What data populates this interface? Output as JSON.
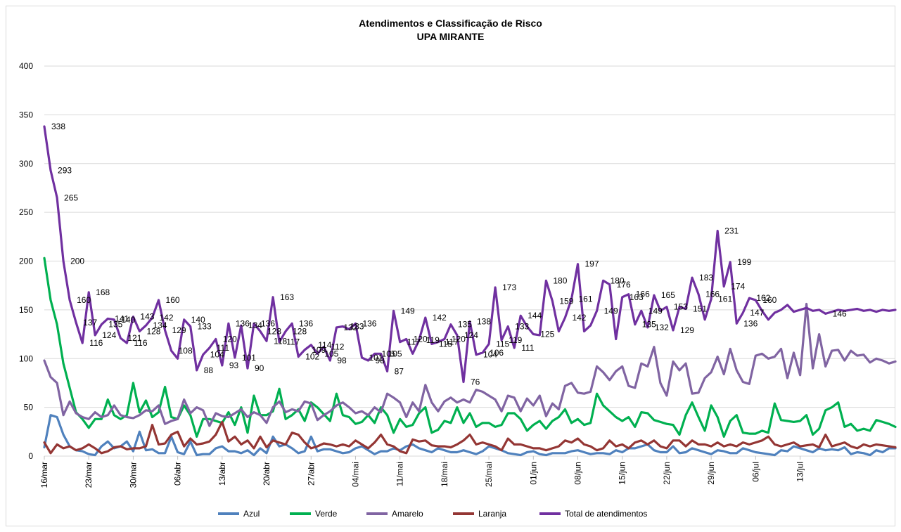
{
  "chart_data": {
    "type": "line",
    "title": "Atendimentos e Classificação de Risco",
    "subtitle": "UPA MIRANTE",
    "xlabel": "",
    "ylabel": "",
    "ylim": [
      0,
      400
    ],
    "yticks": [
      0,
      50,
      100,
      150,
      200,
      250,
      300,
      350,
      400
    ],
    "grid": true,
    "legend_position": "bottom",
    "x_start": "2020-03-16",
    "x_end": "2020-07-20",
    "x_tick_labels": [
      "16/mar",
      "23/mar",
      "30/mar",
      "06/abr",
      "13/abr",
      "20/abr",
      "27/abr",
      "04/mai",
      "11/mai",
      "18/mai",
      "25/mai",
      "01/jun",
      "08/jun",
      "15/jun",
      "22/jun",
      "29/jun",
      "06/jul",
      "13/jul"
    ],
    "series": [
      {
        "name": "Azul",
        "color": "#4f81bd",
        "values": [
          9,
          42,
          40,
          22,
          10,
          6,
          5,
          2,
          1,
          10,
          15,
          8,
          10,
          15,
          5,
          25,
          6,
          7,
          3,
          3,
          20,
          4,
          2,
          15,
          1,
          2,
          2,
          8,
          10,
          5,
          5,
          3,
          6,
          1,
          8,
          3,
          20,
          10,
          12,
          8,
          3,
          5,
          20,
          5,
          7,
          7,
          5,
          3,
          4,
          8,
          10,
          6,
          2,
          5,
          5,
          8,
          6,
          10,
          12,
          8,
          6,
          4,
          8,
          6,
          4,
          4,
          6,
          4,
          2,
          5,
          10,
          8,
          6,
          3,
          2,
          1,
          4,
          5,
          2,
          1,
          3,
          3,
          3,
          5,
          6,
          4,
          2,
          3,
          3,
          2,
          6,
          4,
          8,
          8,
          10,
          12,
          6,
          4,
          4,
          10,
          3,
          4,
          8,
          6,
          4,
          2,
          6,
          5,
          3,
          3,
          8,
          6,
          4,
          3,
          2,
          1,
          6,
          5,
          10,
          8,
          6,
          4,
          8,
          6,
          7,
          6,
          9,
          2,
          4,
          3,
          1,
          6,
          4,
          8,
          8
        ]
      },
      {
        "name": "Verde",
        "color": "#00b050",
        "values": [
          203,
          160,
          135,
          95,
          70,
          45,
          38,
          29,
          38,
          38,
          58,
          42,
          38,
          42,
          75,
          45,
          57,
          40,
          45,
          71,
          40,
          38,
          52,
          42,
          20,
          38,
          38,
          36,
          34,
          45,
          32,
          50,
          24,
          62,
          42,
          42,
          46,
          69,
          38,
          42,
          48,
          36,
          55,
          50,
          43,
          36,
          64,
          42,
          40,
          33,
          35,
          42,
          34,
          50,
          42,
          24,
          38,
          30,
          32,
          44,
          50,
          24,
          27,
          36,
          34,
          50,
          34,
          44,
          30,
          34,
          34,
          30,
          32,
          44,
          44,
          38,
          26,
          32,
          36,
          28,
          36,
          40,
          48,
          34,
          38,
          32,
          34,
          64,
          52,
          46,
          40,
          36,
          40,
          30,
          45,
          44,
          37,
          35,
          33,
          32,
          22,
          42,
          55,
          40,
          26,
          52,
          40,
          20,
          36,
          42,
          24,
          23,
          23,
          26,
          24,
          54,
          37,
          36,
          35,
          36,
          42,
          22,
          28,
          47,
          50,
          55,
          30,
          33,
          26,
          28,
          26,
          37,
          35,
          33,
          30
        ]
      },
      {
        "name": "Amarelo",
        "color": "#8064a2",
        "values": [
          98,
          81,
          75,
          42,
          56,
          44,
          40,
          38,
          45,
          40,
          42,
          52,
          42,
          40,
          39,
          42,
          47,
          46,
          52,
          33,
          36,
          38,
          58,
          44,
          50,
          47,
          31,
          44,
          41,
          40,
          44,
          48,
          40,
          45,
          42,
          34,
          50,
          56,
          45,
          48,
          46,
          56,
          54,
          37,
          42,
          46,
          52,
          55,
          50,
          44,
          46,
          42,
          50,
          45,
          64,
          60,
          55,
          40,
          55,
          46,
          73,
          55,
          46,
          56,
          60,
          55,
          58,
          55,
          68,
          66,
          62,
          58,
          46,
          62,
          60,
          46,
          59,
          52,
          62,
          41,
          54,
          48,
          72,
          75,
          65,
          64,
          66,
          92,
          86,
          78,
          87,
          92,
          72,
          70,
          95,
          92,
          112,
          75,
          62,
          97,
          88,
          95,
          64,
          65,
          80,
          86,
          102,
          84,
          110,
          88,
          76,
          74,
          103,
          105,
          100,
          102,
          110,
          80,
          106,
          83,
          156,
          90,
          125,
          92,
          108,
          109,
          98,
          108,
          103,
          104,
          96,
          100,
          98,
          95,
          97
        ]
      },
      {
        "name": "Laranja",
        "color": "#943634",
        "values": [
          14,
          3,
          12,
          8,
          10,
          6,
          8,
          12,
          8,
          3,
          5,
          9,
          10,
          7,
          8,
          8,
          10,
          32,
          12,
          13,
          22,
          25,
          10,
          18,
          12,
          13,
          15,
          22,
          35,
          15,
          20,
          12,
          16,
          8,
          20,
          9,
          16,
          14,
          12,
          24,
          22,
          14,
          8,
          10,
          13,
          12,
          10,
          12,
          10,
          16,
          12,
          8,
          14,
          22,
          12,
          10,
          5,
          3,
          17,
          15,
          16,
          11,
          10,
          10,
          9,
          12,
          16,
          22,
          12,
          14,
          12,
          10,
          6,
          18,
          12,
          12,
          10,
          8,
          8,
          6,
          8,
          10,
          16,
          14,
          18,
          12,
          10,
          6,
          8,
          16,
          10,
          12,
          8,
          14,
          16,
          12,
          16,
          10,
          8,
          16,
          16,
          10,
          16,
          12,
          12,
          10,
          14,
          10,
          12,
          10,
          14,
          12,
          14,
          16,
          20,
          12,
          10,
          12,
          14,
          10,
          11,
          12,
          9,
          22,
          10,
          12,
          14,
          10,
          8,
          12,
          10,
          12,
          11,
          10,
          9
        ]
      },
      {
        "name": "Total de atendimentos",
        "color": "#7030a0",
        "values": [
          338,
          293,
          265,
          200,
          160,
          137,
          116,
          168,
          124,
          135,
          141,
          140,
          121,
          116,
          143,
          128,
          134,
          142,
          160,
          129,
          108,
          100,
          140,
          133,
          88,
          104,
          111,
          120,
          93,
          136,
          101,
          134,
          90,
          136,
          128,
          118,
          163,
          117,
          128,
          136,
          102,
          109,
          114,
          105,
          112,
          98,
          132,
          133,
          130,
          136,
          101,
          98,
          105,
          105,
          87,
          149,
          117,
          120,
          105,
          119,
          142,
          115,
          117,
          120,
          135,
          124,
          76,
          138,
          104,
          106,
          115,
          173,
          119,
          133,
          111,
          144,
          133,
          125,
          124,
          180,
          159,
          128,
          142,
          161,
          197,
          128,
          134,
          149,
          180,
          176,
          120,
          163,
          166,
          135,
          149,
          132,
          165,
          149,
          153,
          129,
          153,
          151,
          183,
          166,
          140,
          161,
          231,
          174,
          199,
          136,
          147,
          162,
          160,
          149,
          140,
          147,
          150,
          155,
          148,
          150,
          152,
          149,
          150,
          146,
          148,
          150,
          149,
          150,
          151,
          149,
          150,
          148,
          150,
          149,
          150
        ]
      }
    ],
    "data_labels": [
      {
        "series": "Total de atendimentos",
        "text": "338"
      },
      {
        "series": "Total de atendimentos",
        "text": "293"
      },
      {
        "series": "Total de atendimentos",
        "text": "265"
      },
      {
        "series": "Total de atendimentos",
        "text": "200"
      },
      {
        "series": "Total de atendimentos",
        "text": "160"
      },
      {
        "series": "Total de atendimentos",
        "text": "168"
      },
      {
        "series": "Total de atendimentos",
        "text": "137"
      },
      {
        "series": "Total de atendimentos",
        "text": "116"
      },
      {
        "series": "Total de atendimentos",
        "text": "124"
      },
      {
        "series": "Total de atendimentos",
        "text": "135"
      },
      {
        "series": "Total de atendimentos",
        "text": "141"
      },
      {
        "series": "Total de atendimentos",
        "text": "121"
      },
      {
        "series": "Total de atendimentos",
        "text": "116"
      },
      {
        "series": "Total de atendimentos",
        "text": "143"
      },
      {
        "series": "Total de atendimentos",
        "text": "128"
      },
      {
        "series": "Total de atendimentos",
        "text": "136"
      },
      {
        "series": "Total de atendimentos",
        "text": "142"
      },
      {
        "series": "Total de atendimentos",
        "text": "132"
      },
      {
        "series": "Total de atendimentos",
        "text": "160"
      },
      {
        "series": "Total de atendimentos",
        "text": "129"
      },
      {
        "series": "Total de atendimentos",
        "text": "108"
      },
      {
        "series": "Total de atendimentos",
        "text": "109"
      },
      {
        "series": "Total de atendimentos",
        "text": "140"
      },
      {
        "series": "Total de atendimentos",
        "text": "111"
      },
      {
        "series": "Total de atendimentos",
        "text": "88"
      },
      {
        "series": "Total de atendimentos",
        "text": "104"
      },
      {
        "series": "Total de atendimentos",
        "text": "120"
      },
      {
        "series": "Total de atendimentos",
        "text": "133"
      },
      {
        "series": "Total de atendimentos",
        "text": "101"
      },
      {
        "series": "Total de atendimentos",
        "text": "93"
      },
      {
        "series": "Total de atendimentos",
        "text": "136"
      },
      {
        "series": "Total de atendimentos",
        "text": "134"
      },
      {
        "series": "Total de atendimentos",
        "text": "90"
      },
      {
        "series": "Total de atendimentos",
        "text": "163"
      },
      {
        "series": "Total de atendimentos",
        "text": "118"
      },
      {
        "series": "Total de atendimentos",
        "text": "117"
      },
      {
        "series": "Total de atendimentos",
        "text": "136"
      },
      {
        "series": "Total de atendimentos",
        "text": "128"
      },
      {
        "series": "Total de atendimentos",
        "text": "102"
      },
      {
        "series": "Total de atendimentos",
        "text": "109"
      },
      {
        "series": "Total de atendimentos",
        "text": "146"
      },
      {
        "series": "Total de atendimentos",
        "text": "132"
      },
      {
        "series": "Total de atendimentos",
        "text": "114"
      },
      {
        "series": "Total de atendimentos",
        "text": "102"
      },
      {
        "series": "Total de atendimentos",
        "text": "105"
      },
      {
        "series": "Total de atendimentos",
        "text": "112"
      },
      {
        "series": "Total de atendimentos",
        "text": "98"
      },
      {
        "series": "Total de atendimentos",
        "text": "133"
      },
      {
        "series": "Total de atendimentos",
        "text": "136"
      },
      {
        "series": "Total de atendimentos",
        "text": "101"
      },
      {
        "series": "Total de atendimentos",
        "text": "105"
      },
      {
        "series": "Total de atendimentos",
        "text": "98"
      },
      {
        "series": "Total de atendimentos",
        "text": "87"
      },
      {
        "series": "Total de atendimentos",
        "text": "149"
      },
      {
        "series": "Total de atendimentos",
        "text": "105"
      },
      {
        "series": "Total de atendimentos",
        "text": "119"
      },
      {
        "series": "Total de atendimentos",
        "text": "115"
      },
      {
        "series": "Total de atendimentos",
        "text": "142"
      },
      {
        "series": "Total de atendimentos",
        "text": "117"
      },
      {
        "series": "Total de atendimentos",
        "text": "135"
      },
      {
        "series": "Total de atendimentos",
        "text": "120"
      },
      {
        "series": "Total de atendimentos",
        "text": "117"
      },
      {
        "series": "Total de atendimentos",
        "text": "76"
      },
      {
        "series": "Total de atendimentos",
        "text": "99"
      },
      {
        "series": "Total de atendimentos",
        "text": "138"
      },
      {
        "series": "Total de atendimentos",
        "text": "119"
      },
      {
        "series": "Total de atendimentos",
        "text": "104"
      },
      {
        "series": "Total de atendimentos",
        "text": "106"
      },
      {
        "series": "Total de atendimentos",
        "text": "115"
      },
      {
        "series": "Total de atendimentos",
        "text": "173"
      },
      {
        "series": "Total de atendimentos",
        "text": "111"
      },
      {
        "series": "Total de atendimentos",
        "text": "144"
      },
      {
        "series": "Total de atendimentos",
        "text": "133"
      },
      {
        "series": "Total de atendimentos",
        "text": "124"
      },
      {
        "series": "Total de atendimentos",
        "text": "125"
      },
      {
        "series": "Total de atendimentos",
        "text": "180"
      },
      {
        "series": "Total de atendimentos",
        "text": "159"
      },
      {
        "series": "Total de atendimentos",
        "text": "138"
      },
      {
        "series": "Total de atendimentos",
        "text": "142"
      },
      {
        "series": "Total de atendimentos",
        "text": "161"
      },
      {
        "series": "Total de atendimentos",
        "text": "128"
      },
      {
        "series": "Total de atendimentos",
        "text": "197"
      },
      {
        "series": "Total de atendimentos",
        "text": "134"
      },
      {
        "series": "Total de atendimentos",
        "text": "149"
      },
      {
        "series": "Total de atendimentos",
        "text": "180"
      },
      {
        "series": "Total de atendimentos",
        "text": "176"
      },
      {
        "series": "Total de atendimentos",
        "text": "135"
      },
      {
        "series": "Total de atendimentos",
        "text": "163"
      },
      {
        "series": "Total de atendimentos",
        "text": "166"
      },
      {
        "series": "Total de atendimentos",
        "text": "120"
      },
      {
        "series": "Total de atendimentos",
        "text": "132"
      },
      {
        "series": "Total de atendimentos",
        "text": "165"
      },
      {
        "series": "Total de atendimentos",
        "text": "149"
      },
      {
        "series": "Total de atendimentos",
        "text": "153"
      },
      {
        "series": "Total de atendimentos",
        "text": "129"
      },
      {
        "series": "Total de atendimentos",
        "text": "183"
      },
      {
        "series": "Total de atendimentos",
        "text": "151"
      },
      {
        "series": "Total de atendimentos",
        "text": "166"
      },
      {
        "series": "Total de atendimentos",
        "text": "140"
      },
      {
        "series": "Total de atendimentos",
        "text": "161"
      },
      {
        "series": "Total de atendimentos",
        "text": "136"
      },
      {
        "series": "Total de atendimentos",
        "text": "231"
      },
      {
        "series": "Total de atendimentos",
        "text": "199"
      },
      {
        "series": "Total de atendimentos",
        "text": "174"
      },
      {
        "series": "Total de atendimentos",
        "text": "147"
      },
      {
        "series": "Total de atendimentos",
        "text": "162"
      },
      {
        "series": "Total de atendimentos",
        "text": "160"
      }
    ]
  }
}
